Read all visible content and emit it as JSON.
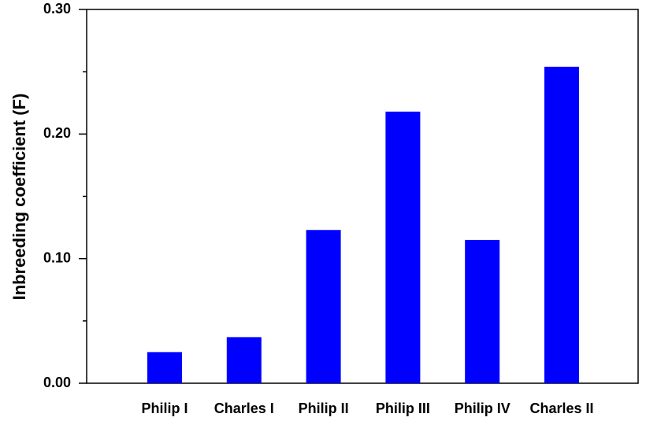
{
  "chart_data": {
    "type": "bar",
    "y_label": "Inbreeding coefficient (F)",
    "categories": [
      "Philip I",
      "Charles I",
      "Philip II",
      "Philip III",
      "Philip IV",
      "Charles II"
    ],
    "values": [
      0.025,
      0.037,
      0.123,
      0.218,
      0.115,
      0.254
    ],
    "color": "#0000ff",
    "ylim": [
      0,
      0.3
    ],
    "yticks": [
      {
        "value": 0,
        "label": "0.00"
      },
      {
        "value": 0.1,
        "label": "0.10"
      },
      {
        "value": 0.2,
        "label": "0.20"
      },
      {
        "value": 0.3,
        "label": "0.30"
      }
    ],
    "minor_yticks": [
      0.05,
      0.15,
      0.25
    ],
    "grid": false
  }
}
